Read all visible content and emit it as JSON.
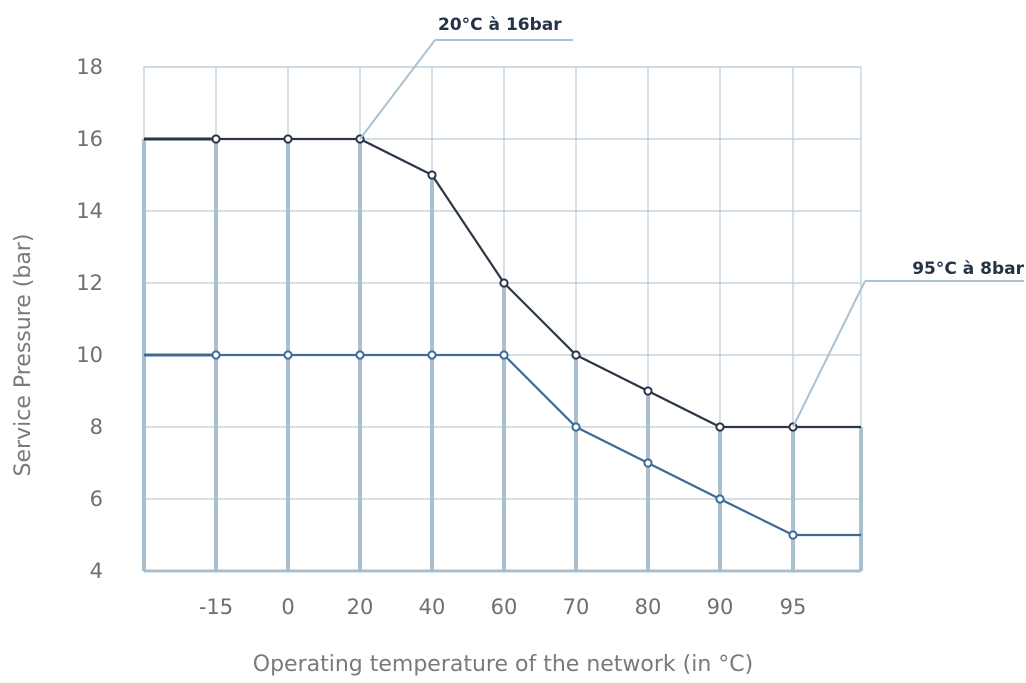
{
  "chart_data": {
    "type": "line",
    "title": "",
    "xlabel": "Operating temperature of the network (in °C)",
    "ylabel": "Service Pressure (bar)",
    "categories": [
      "-15",
      "0",
      "20",
      "40",
      "60",
      "70",
      "80",
      "90",
      "95"
    ],
    "ylim": [
      4,
      18
    ],
    "yticks": [
      4,
      6,
      8,
      10,
      12,
      14,
      16,
      18
    ],
    "grid": true,
    "series": [
      {
        "values": [
          16,
          16,
          16,
          15,
          12,
          10,
          9,
          8,
          8
        ],
        "color": "#2b3648"
      },
      {
        "values": [
          10,
          10,
          10,
          10,
          10,
          8,
          7,
          6,
          5
        ],
        "color": "#3e6a96"
      }
    ],
    "annotations": [
      {
        "text": "20°C à 16bar",
        "category": "20",
        "value": 16
      },
      {
        "text": "95°C à 8bar",
        "category": "95",
        "value": 8
      }
    ],
    "grid_color": "#b9ccd8",
    "drop_line_color": "#a9bfcd"
  }
}
